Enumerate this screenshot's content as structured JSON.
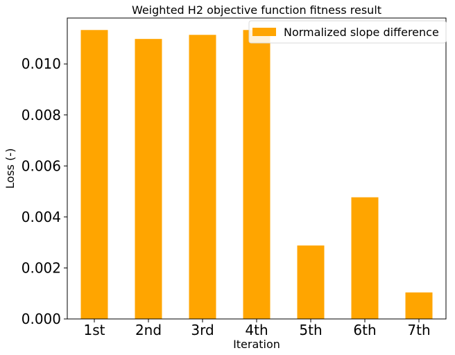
{
  "chart_data": {
    "type": "bar",
    "title": "Weighted H2 objective function fitness result",
    "xlabel": "Iteration",
    "ylabel": "Loss (-)",
    "categories": [
      "1st",
      "2nd",
      "3rd",
      "4th",
      "5th",
      "6th",
      "7th"
    ],
    "series": [
      {
        "name": "Normalized slope difference",
        "color": "#ffa500",
        "values": [
          0.01133,
          0.01098,
          0.01114,
          0.01133,
          0.00288,
          0.00477,
          0.00104
        ]
      }
    ],
    "ylim": [
      0,
      0.0118
    ],
    "yticks": [
      "0.000",
      "0.002",
      "0.004",
      "0.006",
      "0.008",
      "0.010"
    ],
    "ytick_values": [
      0,
      0.002,
      0.004,
      0.006,
      0.008,
      0.01
    ],
    "grid": false,
    "legend_position": "top-right"
  }
}
